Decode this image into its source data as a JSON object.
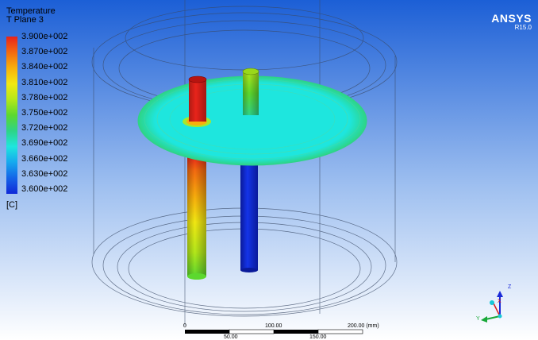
{
  "legend": {
    "title": "Temperature",
    "subtitle": "T Plane 3",
    "unit": "[C]",
    "entries": [
      {
        "label": "3.900e+002",
        "color": "#e8231a"
      },
      {
        "label": "3.870e+002",
        "color": "#f46a10"
      },
      {
        "label": "3.840e+002",
        "color": "#f8b00c"
      },
      {
        "label": "3.810e+002",
        "color": "#f2e812"
      },
      {
        "label": "3.780e+002",
        "color": "#b4e81a"
      },
      {
        "label": "3.750e+002",
        "color": "#5cd82e"
      },
      {
        "label": "3.720e+002",
        "color": "#2ed486"
      },
      {
        "label": "3.690e+002",
        "color": "#1ee6de"
      },
      {
        "label": "3.660e+002",
        "color": "#16a8ee"
      },
      {
        "label": "3.630e+002",
        "color": "#1464e8"
      },
      {
        "label": "3.600e+002",
        "color": "#1028d8"
      }
    ]
  },
  "branding": {
    "name": "ANSYS",
    "version": "R15.0"
  },
  "scale_bar": {
    "top_labels": [
      "0",
      "100.00",
      "200.00  (mm)"
    ],
    "bottom_labels": [
      "50.00",
      "150.00"
    ]
  },
  "triad": {
    "x": "X",
    "y": "Y",
    "z": "Z"
  },
  "colors": {
    "bg_top": "#1c5fd6",
    "bg_bottom": "#ffffff"
  }
}
